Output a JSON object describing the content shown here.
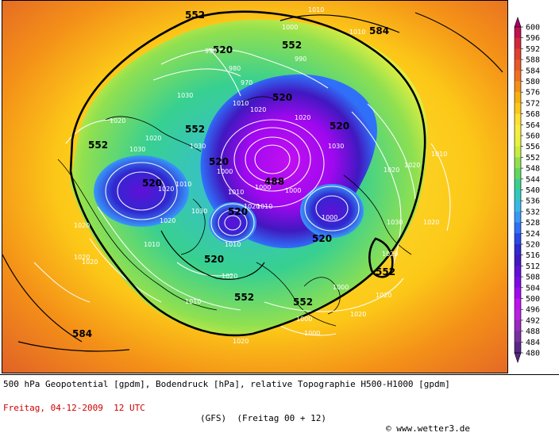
{
  "legend": {
    "levels": [
      "600",
      "596",
      "592",
      "588",
      "584",
      "580",
      "576",
      "572",
      "568",
      "564",
      "560",
      "556",
      "552",
      "548",
      "544",
      "540",
      "536",
      "532",
      "528",
      "524",
      "520",
      "516",
      "512",
      "508",
      "504",
      "500",
      "496",
      "492",
      "488",
      "484",
      "480"
    ],
    "colors": [
      "#a8006a",
      "#c01050",
      "#d02838",
      "#e04030",
      "#e85828",
      "#f07020",
      "#f49018",
      "#f8b010",
      "#fcc818",
      "#ffe030",
      "#f8ec40",
      "#e8f040",
      "#c8ec40",
      "#90e050",
      "#60d860",
      "#38d090",
      "#30c8c0",
      "#38b8e8",
      "#3898f8",
      "#3070f8",
      "#2848e8",
      "#3028d0",
      "#4018c0",
      "#6010d8",
      "#8008e8",
      "#a008f0",
      "#c010f0",
      "#b820e0",
      "#9828c0",
      "#7830a0",
      "#582888"
    ]
  },
  "map_labels": {
    "big": [
      "552",
      "552",
      "552",
      "552",
      "552",
      "552",
      "552",
      "520",
      "520",
      "520",
      "520",
      "520",
      "520",
      "520",
      "520",
      "488",
      "584",
      "584"
    ],
    "small": [
      "1010",
      "1010",
      "1000",
      "990",
      "990",
      "980",
      "970",
      "1010",
      "1020",
      "1030",
      "1020",
      "1020",
      "1030",
      "1030",
      "1020",
      "1030",
      "1000",
      "1010",
      "1000",
      "1000",
      "1010",
      "1020",
      "1020",
      "1030",
      "1020",
      "1030",
      "1000",
      "1000",
      "1020",
      "1020",
      "1020",
      "1010",
      "1020",
      "1010",
      "1020",
      "1000",
      "1020",
      "1020",
      "1010",
      "1010",
      "1000",
      "1020",
      "1010",
      "1020",
      "1020",
      "1020"
    ]
  },
  "footer": {
    "line1": "500 hPa Geopotential [gpdm], Bodendruck [hPa], relative Topographie H500-H1000 [gpdm]",
    "date": "Freitag, 04-12-2009  12 UTC",
    "model": "(GFS)  (Freitag 00 + 12)",
    "copyright": "© www.wetter3.de"
  }
}
